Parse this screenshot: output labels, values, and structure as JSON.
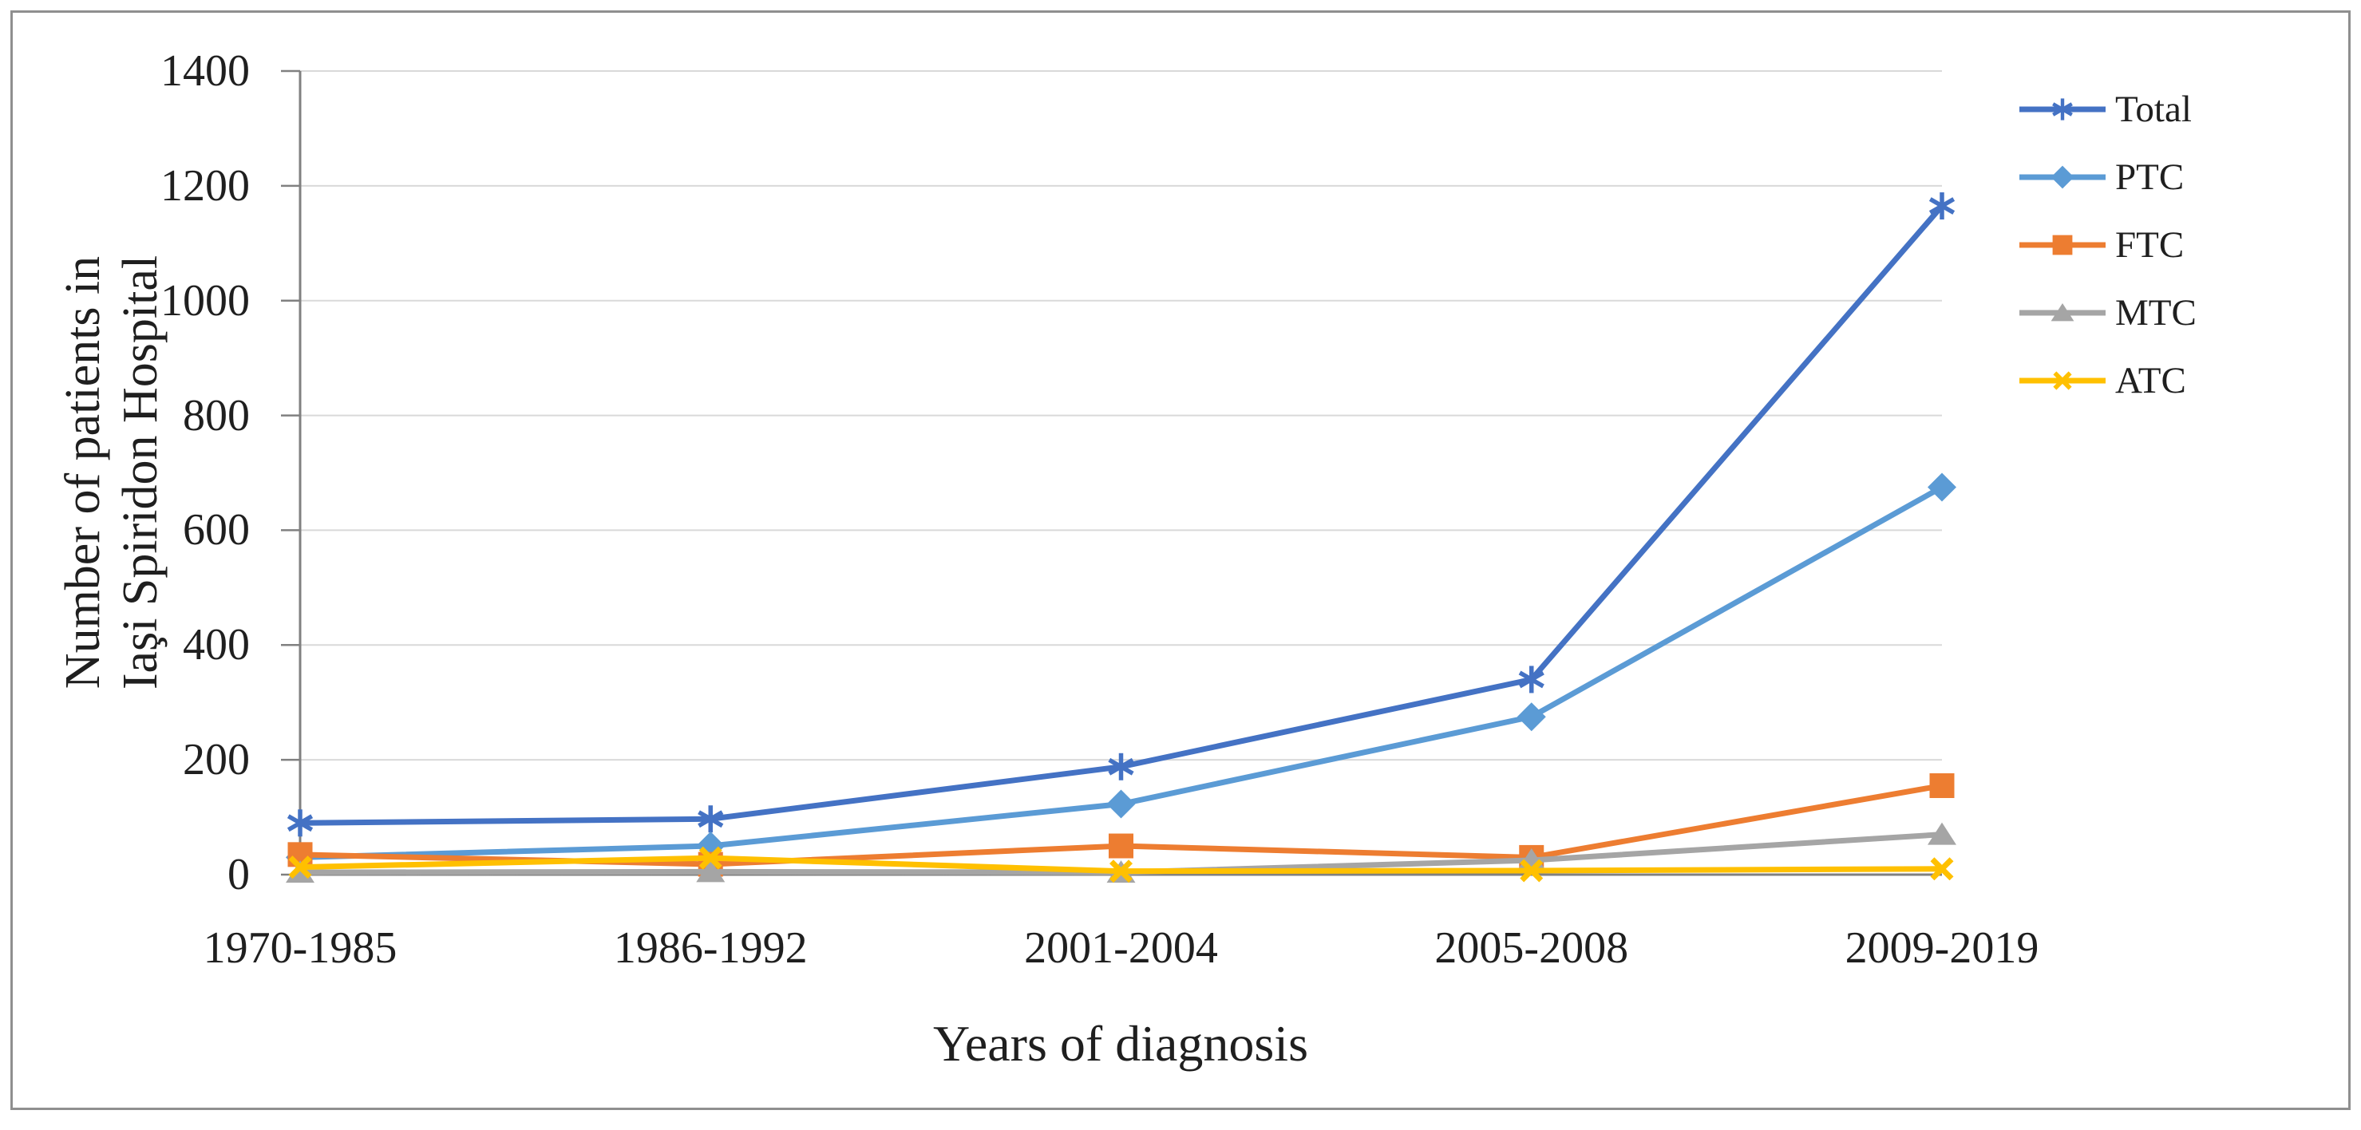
{
  "chart_data": {
    "type": "line",
    "title": "",
    "categories": [
      "1970-1985",
      "1986-1992",
      "2001-2004",
      "2005-2008",
      "2009-2019"
    ],
    "series": [
      {
        "name": "Total",
        "marker": "asterisk",
        "color": "#4472C4",
        "values": [
          90,
          97,
          188,
          340,
          1165
        ]
      },
      {
        "name": "PTC",
        "marker": "diamond",
        "color": "#5B9BD5",
        "values": [
          30,
          50,
          123,
          275,
          675
        ]
      },
      {
        "name": "FTC",
        "marker": "square",
        "color": "#ED7D31",
        "values": [
          35,
          18,
          50,
          30,
          155
        ]
      },
      {
        "name": "MTC",
        "marker": "triangle",
        "color": "#A5A5A5",
        "values": [
          4,
          5,
          4,
          25,
          70
        ]
      },
      {
        "name": "ATC",
        "marker": "x",
        "color": "#FFC000",
        "values": [
          13,
          29,
          6,
          7,
          10
        ]
      }
    ],
    "xlabel": "Years of diagnosis",
    "ylabel_lines": [
      "Number of patients in",
      "Iaşi Spiridon Hospital"
    ],
    "ylim": [
      0,
      1400
    ],
    "ytick_step": 200,
    "yticks": [
      0,
      200,
      400,
      600,
      800,
      1000,
      1200,
      1400
    ],
    "grid": "horizontal",
    "legend_position": "right"
  },
  "colors": {
    "gridline": "#D9D9D9",
    "axis": "#808080",
    "text": "#1F1F1F",
    "frame_border": "#8F8F8F",
    "background": "#FFFFFF"
  }
}
